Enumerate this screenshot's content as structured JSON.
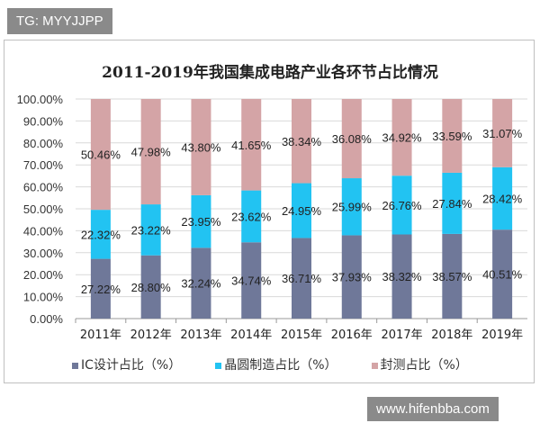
{
  "watermarks": {
    "top_left": "TG: MYYJJPP",
    "bottom_right": "www.hifenbba.com"
  },
  "chart_data": {
    "type": "bar",
    "stacked": true,
    "title": "2011-2019年我国集成电路产业各环节占比情况",
    "categories": [
      "2011年",
      "2012年",
      "2013年",
      "2014年",
      "2015年",
      "2016年",
      "2017年",
      "2018年",
      "2019年"
    ],
    "series": [
      {
        "name": "IC设计占比（%）",
        "color": "#6f7899",
        "values": [
          27.22,
          28.8,
          32.24,
          34.74,
          36.71,
          37.93,
          38.32,
          38.57,
          40.51
        ]
      },
      {
        "name": "晶圆制造占比（%）",
        "color": "#22c3f2",
        "values": [
          22.32,
          23.22,
          23.95,
          23.62,
          24.95,
          25.99,
          26.76,
          27.84,
          28.42
        ]
      },
      {
        "name": "封测占比（%）",
        "color": "#d4a4a6",
        "values": [
          50.46,
          47.98,
          43.8,
          41.65,
          38.34,
          36.08,
          34.92,
          33.59,
          31.07
        ]
      }
    ],
    "ylim": [
      0,
      100
    ],
    "yticks": [
      "0.00%",
      "10.00%",
      "20.00%",
      "30.00%",
      "40.00%",
      "50.00%",
      "60.00%",
      "70.00%",
      "80.00%",
      "90.00%",
      "100.00%"
    ],
    "grid": true,
    "legend": "bottom"
  }
}
